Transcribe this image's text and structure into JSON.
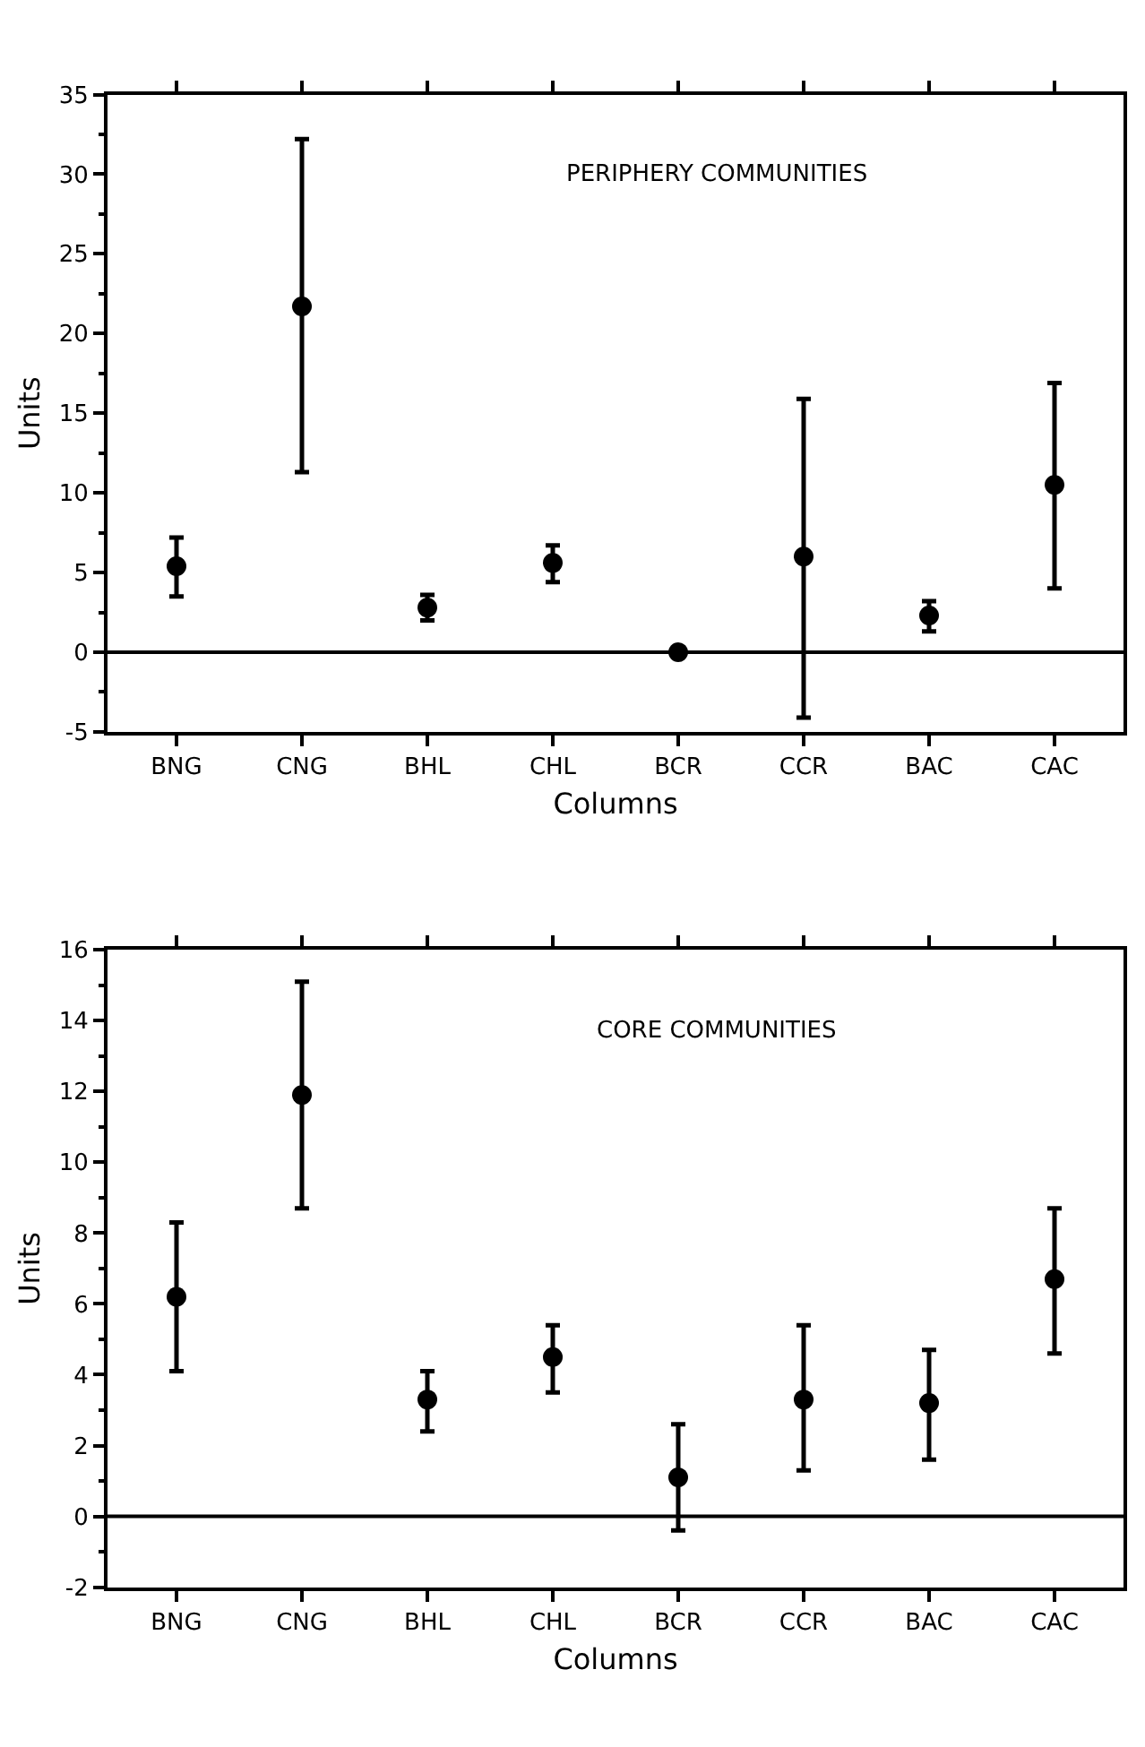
{
  "chart_data": [
    {
      "type": "scatter",
      "title": "PERIPHERY COMMUNITIES",
      "xlabel": "Columns",
      "ylabel": "Units",
      "categories": [
        "BNG",
        "CNG",
        "BHL",
        "CHL",
        "BCR",
        "CCR",
        "BAC",
        "CAC"
      ],
      "series": [
        {
          "color": "#000000",
          "values": [
            5.4,
            21.7,
            2.8,
            5.6,
            0,
            6.0,
            2.3,
            10.5
          ],
          "errors": [
            [
              3.5,
              7.2
            ],
            [
              11.3,
              32.2
            ],
            [
              2.0,
              3.6
            ],
            [
              4.4,
              6.7
            ],
            null,
            [
              -4.1,
              15.9
            ],
            [
              1.3,
              3.2
            ],
            [
              4.0,
              16.9
            ]
          ]
        }
      ],
      "ylim": [
        -5,
        35
      ],
      "yticks": [
        -5,
        0,
        5,
        10,
        15,
        20,
        25,
        30,
        35
      ],
      "ref_lines": [
        {
          "axis": "y",
          "value": 0,
          "color": "#000000"
        }
      ],
      "marker": "circle"
    },
    {
      "type": "scatter",
      "title": "CORE COMMUNITIES",
      "xlabel": "Columns",
      "ylabel": "Units",
      "categories": [
        "BNG",
        "CNG",
        "BHL",
        "CHL",
        "BCR",
        "CCR",
        "BAC",
        "CAC"
      ],
      "series": [
        {
          "color": "#000000",
          "values": [
            6.2,
            11.9,
            3.3,
            4.5,
            1.1,
            3.3,
            3.2,
            6.7
          ],
          "errors": [
            [
              4.1,
              8.3
            ],
            [
              8.7,
              15.1
            ],
            [
              2.4,
              4.1
            ],
            [
              3.5,
              5.4
            ],
            [
              -0.4,
              2.6
            ],
            [
              1.3,
              5.4
            ],
            [
              1.6,
              4.7
            ],
            [
              4.6,
              8.7
            ]
          ]
        }
      ],
      "ylim": [
        -2,
        16
      ],
      "yticks": [
        -2,
        0,
        2,
        4,
        6,
        8,
        10,
        12,
        14,
        16
      ],
      "ref_lines": [
        {
          "axis": "y",
          "value": 0,
          "color": "#000000"
        }
      ],
      "marker": "circle"
    }
  ]
}
